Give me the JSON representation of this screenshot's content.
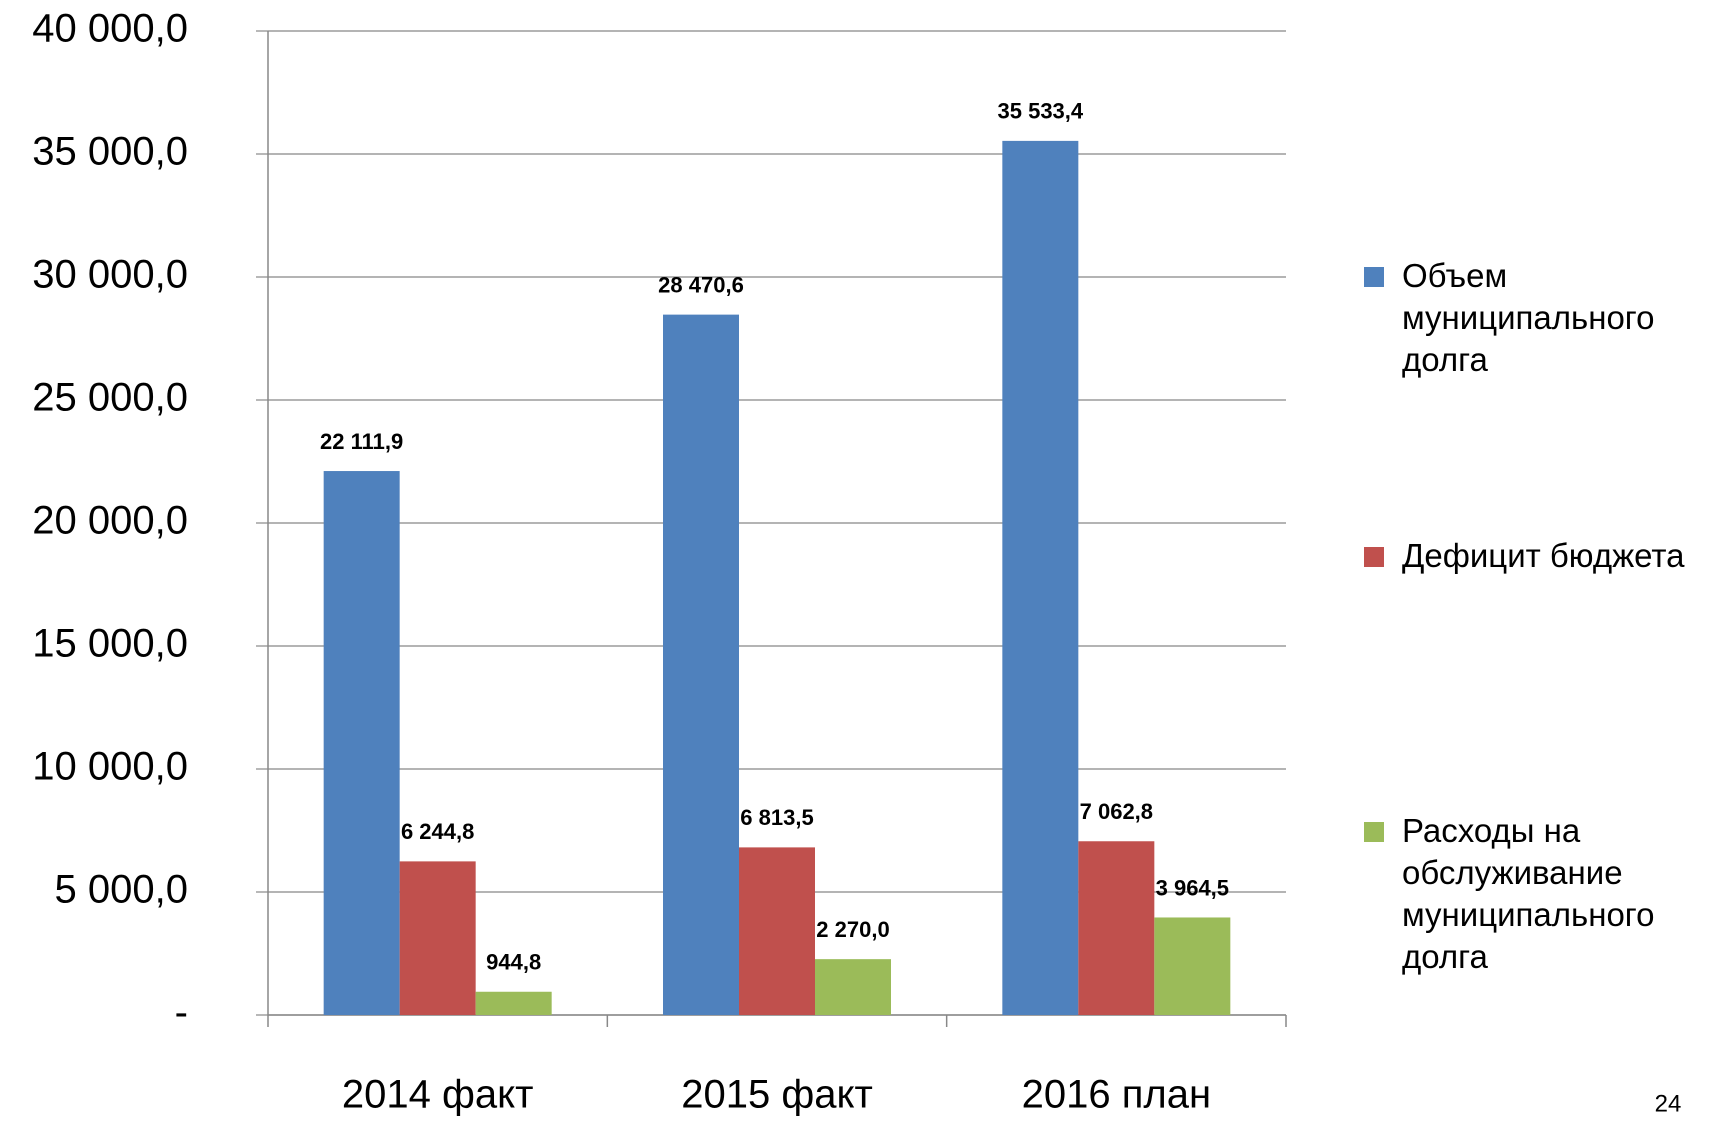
{
  "chart_data": {
    "type": "bar",
    "categories": [
      "2014 факт",
      "2015 факт",
      "2016 план"
    ],
    "series": [
      {
        "name": "Объем муниципального долга",
        "color": "#4f81bd",
        "values": [
          22111.9,
          28470.6,
          35533.4
        ],
        "value_labels": [
          "22 111,9",
          "28 470,6",
          "35 533,4"
        ]
      },
      {
        "name": "Дефицит бюджета",
        "color": "#c0504d",
        "values": [
          6244.8,
          6813.5,
          7062.8
        ],
        "value_labels": [
          "6 244,8",
          "6 813,5",
          "7 062,8"
        ]
      },
      {
        "name": "Расходы на обслуживание муниципального долга",
        "color": "#9bbb59",
        "values": [
          944.8,
          2270.0,
          3964.5
        ],
        "value_labels": [
          "944,8",
          "2 270,0",
          "3 964,5"
        ]
      }
    ],
    "ylim": [
      0,
      40000
    ],
    "yticks": [
      {
        "value": 0,
        "label": "-"
      },
      {
        "value": 5000,
        "label": "5 000,0"
      },
      {
        "value": 10000,
        "label": "10 000,0"
      },
      {
        "value": 15000,
        "label": "15 000,0"
      },
      {
        "value": 20000,
        "label": "20 000,0"
      },
      {
        "value": 25000,
        "label": "25 000,0"
      },
      {
        "value": 30000,
        "label": "30 000,0"
      },
      {
        "value": 35000,
        "label": "35 000,0"
      },
      {
        "value": 40000,
        "label": "40 000,0"
      }
    ],
    "grid": true,
    "legend": "right",
    "page_number": "24"
  }
}
